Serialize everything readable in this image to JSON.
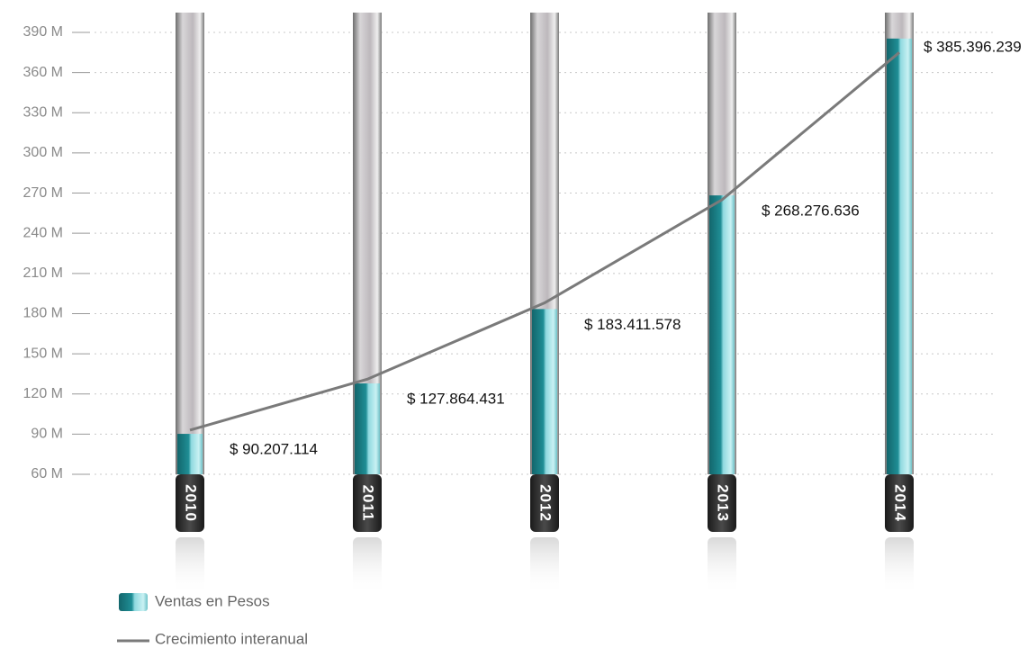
{
  "chart_data": {
    "type": "bar",
    "categories": [
      "2010",
      "2011",
      "2012",
      "2013",
      "2014"
    ],
    "series": [
      {
        "name": "Ventas en Pesos",
        "color": "#1f7f86",
        "values": [
          90.207114,
          127.864431,
          183.411578,
          268.276636,
          385.396239
        ],
        "value_labels": [
          "$ 90.207.114",
          "$ 127.864.431",
          "$ 183.411.578",
          "$ 268.276.636",
          "$ 385.396.239"
        ]
      },
      {
        "name": "Crecimiento interanual",
        "type": "line",
        "color": "#7a7a7a",
        "values": [
          93,
          131,
          188,
          265,
          375
        ]
      }
    ],
    "ylim": [
      60,
      390
    ],
    "yticks": [
      {
        "value": 60,
        "label": "60 M"
      },
      {
        "value": 90,
        "label": "90 M"
      },
      {
        "value": 120,
        "label": "120 M"
      },
      {
        "value": 150,
        "label": "150 M"
      },
      {
        "value": 180,
        "label": "180 M"
      },
      {
        "value": 210,
        "label": "210 M"
      },
      {
        "value": 240,
        "label": "240 M"
      },
      {
        "value": 270,
        "label": "270 M"
      },
      {
        "value": 300,
        "label": "300 M"
      },
      {
        "value": 330,
        "label": "330 M"
      },
      {
        "value": 360,
        "label": "360 M"
      },
      {
        "value": 390,
        "label": "390 M"
      }
    ],
    "grid": true
  }
}
